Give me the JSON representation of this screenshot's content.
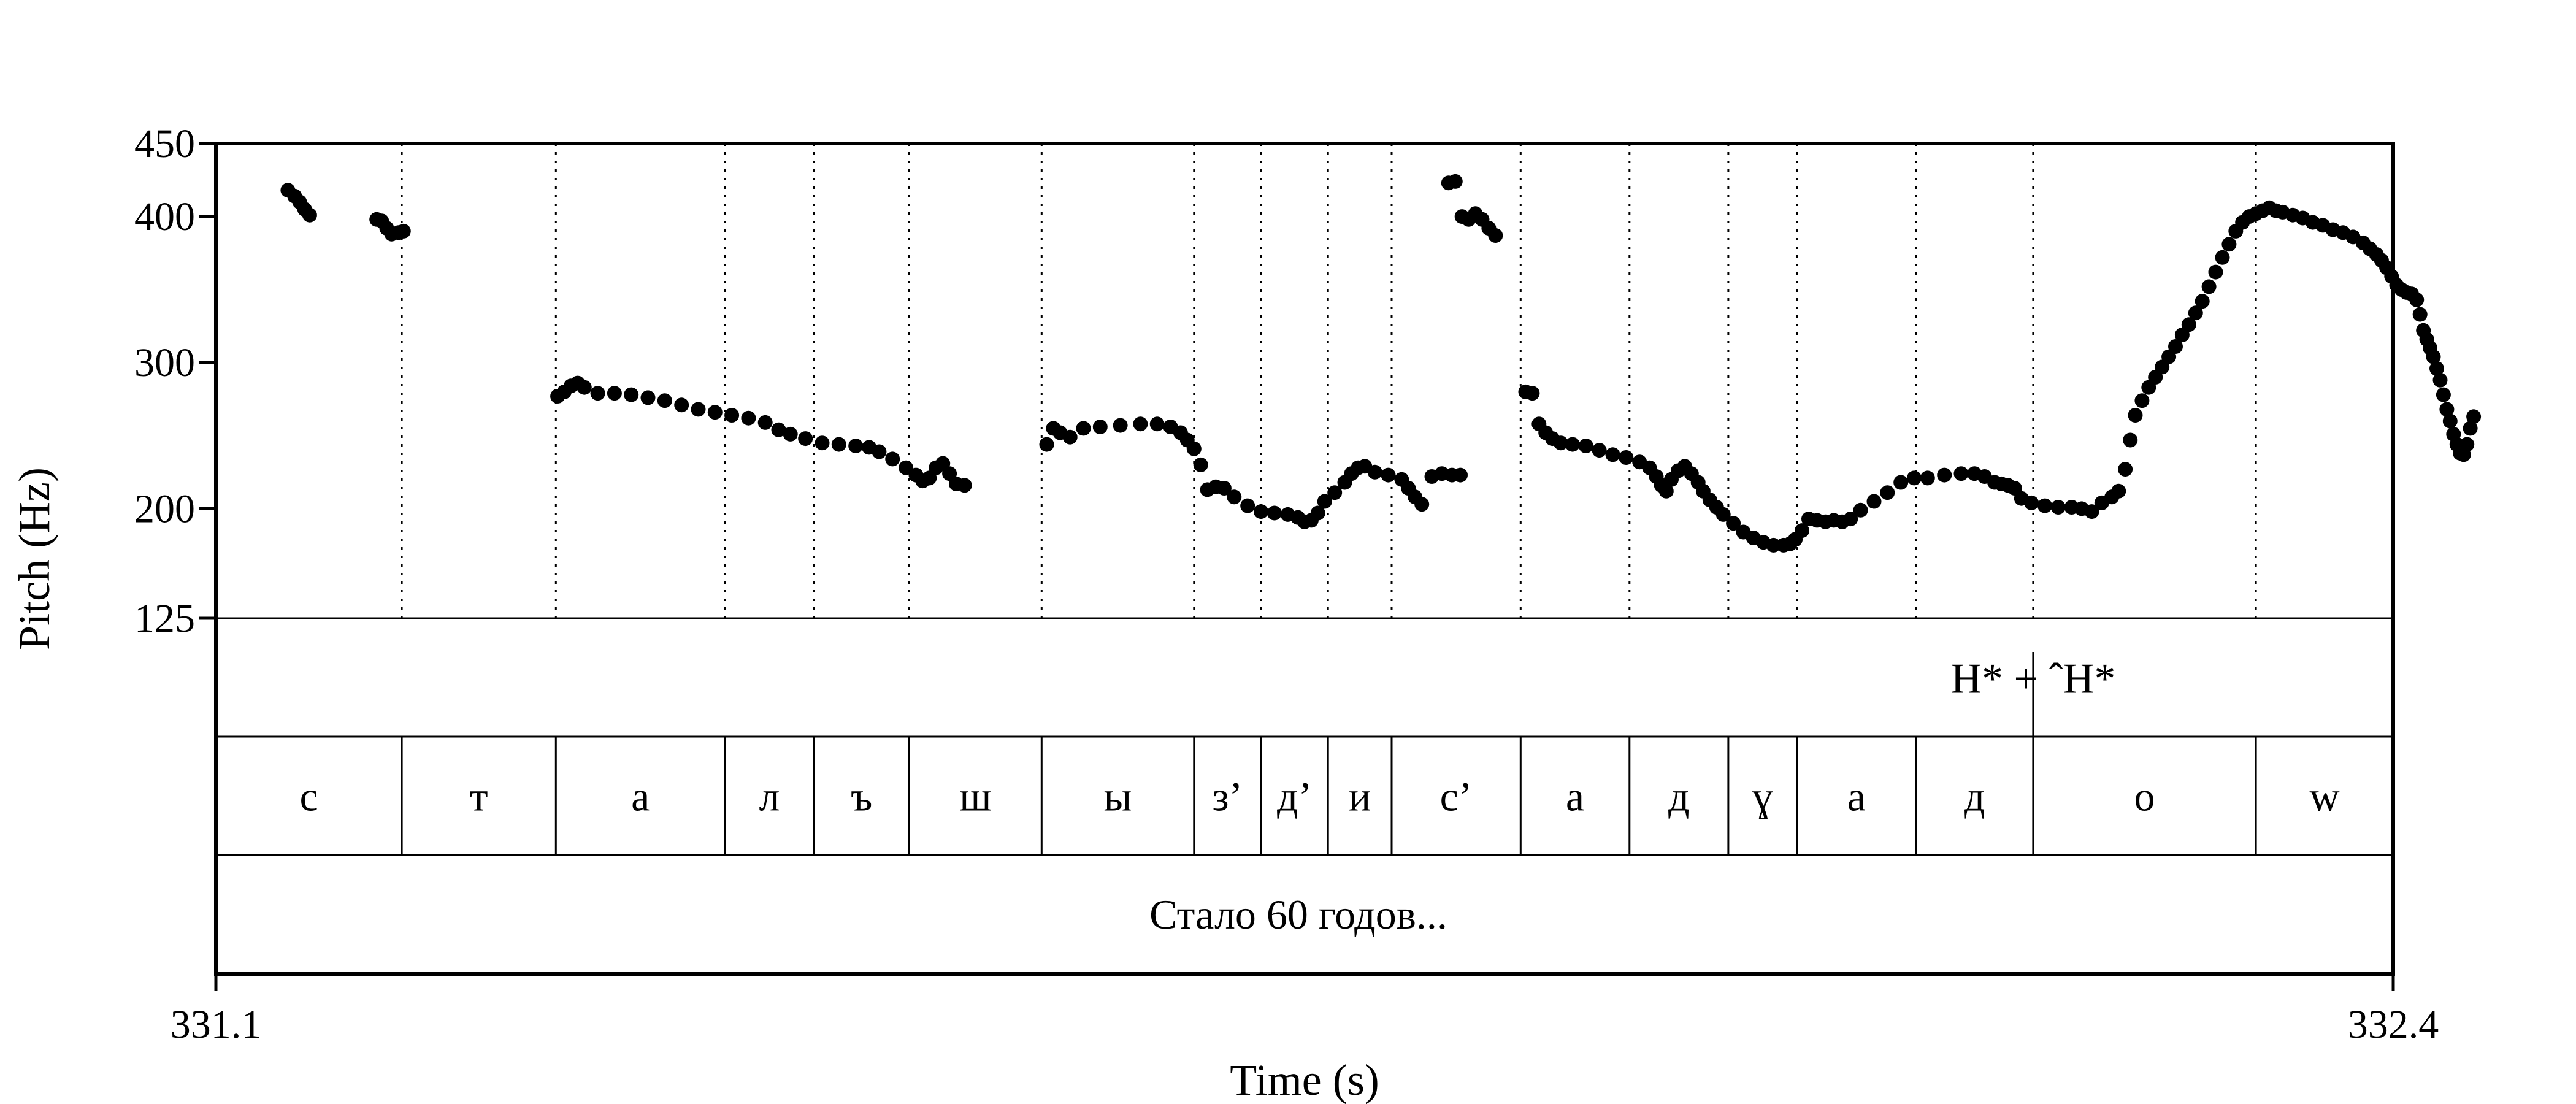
{
  "chart_data": {
    "type": "scatter",
    "xlabel": "Time (s)",
    "ylabel": "Pitch (Hz)",
    "xlim": [
      331.1,
      332.4
    ],
    "ylim": [
      125,
      450
    ],
    "y_ticks": [
      125,
      200,
      300,
      400,
      450
    ],
    "x_tick_labels": [
      "331.1",
      "332.4"
    ],
    "pitch_contour": [
      [
        331.143,
        418
      ],
      [
        331.147,
        414
      ],
      [
        331.15,
        410
      ],
      [
        331.153,
        405
      ],
      [
        331.156,
        401
      ],
      [
        331.196,
        398
      ],
      [
        331.199,
        397
      ],
      [
        331.202,
        392
      ],
      [
        331.205,
        388
      ],
      [
        331.209,
        389
      ],
      [
        331.212,
        390
      ],
      [
        331.304,
        277
      ],
      [
        331.308,
        280
      ],
      [
        331.312,
        284
      ],
      [
        331.316,
        286
      ],
      [
        331.32,
        283
      ],
      [
        331.328,
        279
      ],
      [
        331.338,
        279
      ],
      [
        331.348,
        278
      ],
      [
        331.358,
        276
      ],
      [
        331.368,
        274
      ],
      [
        331.378,
        271
      ],
      [
        331.388,
        268
      ],
      [
        331.398,
        266
      ],
      [
        331.408,
        264
      ],
      [
        331.418,
        262
      ],
      [
        331.428,
        259
      ],
      [
        331.436,
        254
      ],
      [
        331.443,
        251
      ],
      [
        331.452,
        248
      ],
      [
        331.462,
        245
      ],
      [
        331.472,
        244
      ],
      [
        331.482,
        243
      ],
      [
        331.49,
        242
      ],
      [
        331.496,
        239
      ],
      [
        331.504,
        234
      ],
      [
        331.512,
        228
      ],
      [
        331.518,
        223
      ],
      [
        331.522,
        219
      ],
      [
        331.526,
        221
      ],
      [
        331.53,
        228
      ],
      [
        331.534,
        231
      ],
      [
        331.538,
        224
      ],
      [
        331.542,
        217
      ],
      [
        331.547,
        216
      ],
      [
        331.596,
        244
      ],
      [
        331.6,
        255
      ],
      [
        331.604,
        252
      ],
      [
        331.61,
        249
      ],
      [
        331.618,
        255
      ],
      [
        331.628,
        256
      ],
      [
        331.64,
        257
      ],
      [
        331.652,
        258
      ],
      [
        331.662,
        258
      ],
      [
        331.67,
        256
      ],
      [
        331.676,
        252
      ],
      [
        331.68,
        247
      ],
      [
        331.684,
        241
      ],
      [
        331.688,
        230
      ],
      [
        331.692,
        213
      ],
      [
        331.697,
        215
      ],
      [
        331.702,
        214
      ],
      [
        331.708,
        208
      ],
      [
        331.716,
        202
      ],
      [
        331.724,
        198
      ],
      [
        331.732,
        197
      ],
      [
        331.74,
        196
      ],
      [
        331.746,
        194
      ],
      [
        331.75,
        191
      ],
      [
        331.754,
        192
      ],
      [
        331.758,
        197
      ],
      [
        331.762,
        205
      ],
      [
        331.768,
        211
      ],
      [
        331.774,
        218
      ],
      [
        331.778,
        224
      ],
      [
        331.782,
        228
      ],
      [
        331.786,
        229
      ],
      [
        331.792,
        225
      ],
      [
        331.8,
        223
      ],
      [
        331.808,
        220
      ],
      [
        331.812,
        214
      ],
      [
        331.816,
        208
      ],
      [
        331.82,
        203
      ],
      [
        331.826,
        222
      ],
      [
        331.832,
        224
      ],
      [
        331.838,
        223
      ],
      [
        331.843,
        223
      ],
      [
        331.836,
        423
      ],
      [
        331.84,
        424
      ],
      [
        331.844,
        400
      ],
      [
        331.848,
        398
      ],
      [
        331.852,
        402
      ],
      [
        331.856,
        398
      ],
      [
        331.86,
        392
      ],
      [
        331.864,
        387
      ],
      [
        331.882,
        280
      ],
      [
        331.886,
        279
      ],
      [
        331.89,
        258
      ],
      [
        331.894,
        252
      ],
      [
        331.898,
        248
      ],
      [
        331.903,
        245
      ],
      [
        331.91,
        244
      ],
      [
        331.918,
        243
      ],
      [
        331.926,
        240
      ],
      [
        331.934,
        237
      ],
      [
        331.942,
        235
      ],
      [
        331.95,
        232
      ],
      [
        331.956,
        228
      ],
      [
        331.96,
        222
      ],
      [
        331.963,
        216
      ],
      [
        331.966,
        212
      ],
      [
        331.969,
        220
      ],
      [
        331.973,
        226
      ],
      [
        331.977,
        229
      ],
      [
        331.981,
        224
      ],
      [
        331.985,
        218
      ],
      [
        331.988,
        212
      ],
      [
        331.992,
        206
      ],
      [
        331.996,
        201
      ],
      [
        332.0,
        196
      ],
      [
        332.006,
        190
      ],
      [
        332.012,
        184
      ],
      [
        332.018,
        180
      ],
      [
        332.024,
        177
      ],
      [
        332.03,
        175
      ],
      [
        332.036,
        175
      ],
      [
        332.04,
        176
      ],
      [
        332.043,
        179
      ],
      [
        332.047,
        185
      ],
      [
        332.051,
        193
      ],
      [
        332.056,
        192
      ],
      [
        332.061,
        191
      ],
      [
        332.066,
        192
      ],
      [
        332.071,
        191
      ],
      [
        332.076,
        193
      ],
      [
        332.082,
        199
      ],
      [
        332.09,
        205
      ],
      [
        332.098,
        211
      ],
      [
        332.106,
        218
      ],
      [
        332.114,
        221
      ],
      [
        332.122,
        221
      ],
      [
        332.132,
        223
      ],
      [
        332.142,
        224
      ],
      [
        332.15,
        224
      ],
      [
        332.156,
        222
      ],
      [
        332.162,
        218
      ],
      [
        332.166,
        217
      ],
      [
        332.17,
        216
      ],
      [
        332.174,
        214
      ],
      [
        332.178,
        207
      ],
      [
        332.184,
        204
      ],
      [
        332.192,
        202
      ],
      [
        332.2,
        201
      ],
      [
        332.208,
        201
      ],
      [
        332.214,
        200
      ],
      [
        332.22,
        198
      ],
      [
        332.226,
        204
      ],
      [
        332.232,
        208
      ],
      [
        332.236,
        212
      ],
      [
        332.24,
        227
      ],
      [
        332.243,
        247
      ],
      [
        332.246,
        264
      ],
      [
        332.25,
        274
      ],
      [
        332.254,
        283
      ],
      [
        332.258,
        290
      ],
      [
        332.262,
        297
      ],
      [
        332.266,
        304
      ],
      [
        332.27,
        311
      ],
      [
        332.274,
        319
      ],
      [
        332.278,
        326
      ],
      [
        332.282,
        334
      ],
      [
        332.286,
        342
      ],
      [
        332.29,
        352
      ],
      [
        332.294,
        362
      ],
      [
        332.298,
        372
      ],
      [
        332.302,
        381
      ],
      [
        332.306,
        390
      ],
      [
        332.31,
        396
      ],
      [
        332.314,
        400
      ],
      [
        332.318,
        402
      ],
      [
        332.322,
        404
      ],
      [
        332.326,
        406
      ],
      [
        332.33,
        404
      ],
      [
        332.334,
        403
      ],
      [
        332.34,
        401
      ],
      [
        332.346,
        399
      ],
      [
        332.352,
        396
      ],
      [
        332.358,
        394
      ],
      [
        332.364,
        391
      ],
      [
        332.37,
        389
      ],
      [
        332.376,
        386
      ],
      [
        332.382,
        382
      ],
      [
        332.386,
        378
      ],
      [
        332.39,
        374
      ],
      [
        332.393,
        370
      ],
      [
        332.396,
        365
      ],
      [
        332.399,
        359
      ],
      [
        332.402,
        353
      ],
      [
        332.405,
        350
      ],
      [
        332.408,
        348
      ],
      [
        332.411,
        347
      ],
      [
        332.414,
        343
      ],
      [
        332.416,
        333
      ],
      [
        332.418,
        322
      ],
      [
        332.42,
        316
      ],
      [
        332.422,
        310
      ],
      [
        332.424,
        304
      ],
      [
        332.426,
        296
      ],
      [
        332.428,
        288
      ],
      [
        332.43,
        278
      ],
      [
        332.432,
        268
      ],
      [
        332.434,
        260
      ],
      [
        332.436,
        251
      ],
      [
        332.438,
        244
      ],
      [
        332.44,
        238
      ],
      [
        332.442,
        237
      ],
      [
        332.444,
        244
      ],
      [
        332.446,
        255
      ],
      [
        332.448,
        263
      ]
    ],
    "boundaries": [
      331.211,
      331.303,
      331.404,
      331.457,
      331.514,
      331.593,
      331.684,
      331.724,
      331.764,
      331.802,
      331.879,
      331.944,
      332.003,
      332.044,
      332.115,
      332.185,
      332.318
    ],
    "tones": [
      {
        "label": "H* + ˆH*",
        "time": 332.185
      }
    ],
    "segments": [
      "с",
      "т",
      "а",
      "л",
      "ъ",
      "ш",
      "ы",
      "з’",
      "д’",
      "и",
      "с’",
      "а",
      "д",
      "ɣ",
      "а",
      "д",
      "о",
      "w"
    ],
    "word_transcription": "Стало 60 годов..."
  }
}
